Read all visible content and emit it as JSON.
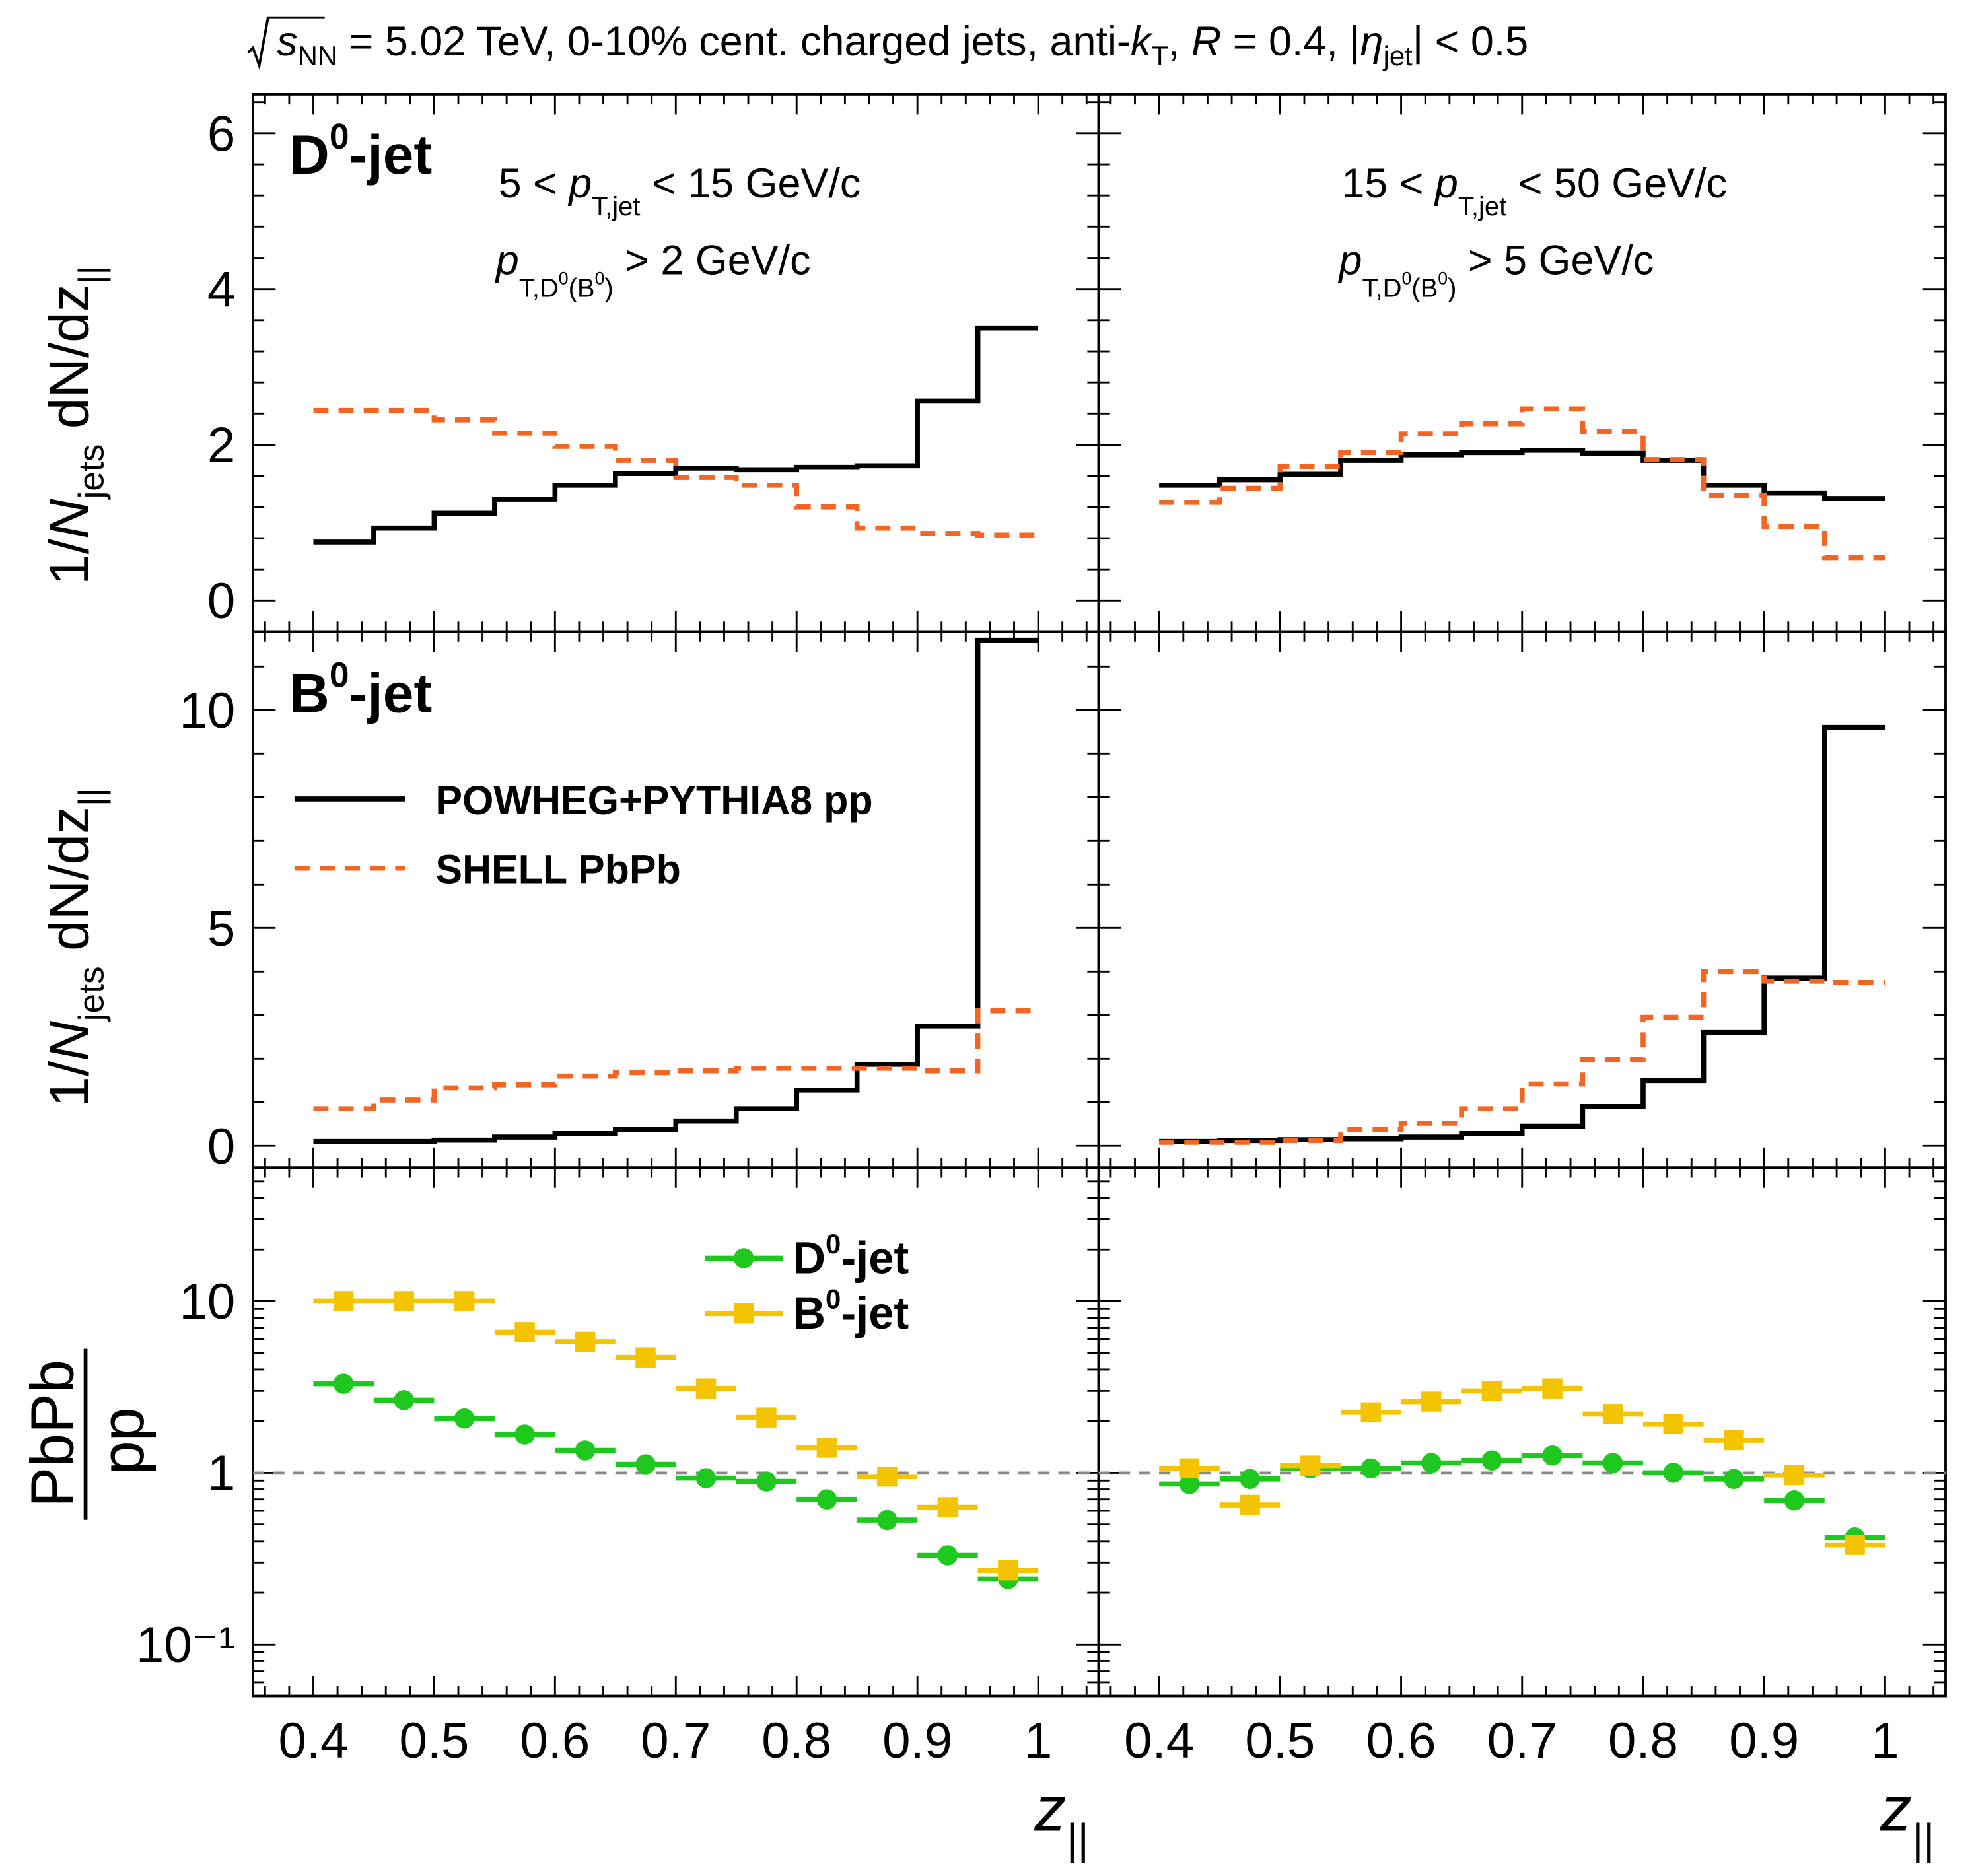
{
  "header": {
    "sqrt_s": "s",
    "sqrt_sub": "NN",
    "part1": " = 5.02 TeV, 0-10% cent. charged jets, anti-",
    "k": "k",
    "k_sub": "T",
    "part2": ", ",
    "R": "R",
    "part3": " = 0.4, |",
    "eta": "η",
    "eta_sub": "jet",
    "part4": "| < 0.5"
  },
  "labels": {
    "d0_jet": {
      "main": "D",
      "sup": "0",
      "rest": "-jet"
    },
    "b0_jet": {
      "main": "B",
      "sup": "0",
      "rest": "-jet"
    },
    "left_kin": {
      "pt_range_lo": "5 < ",
      "pt_p": "p",
      "pt_sub": "T,jet",
      "pt_range_hi": " < 15 GeV/c",
      "cut_p": "p",
      "cut_sub": "T,D",
      "cut_sup1": "0",
      "cut_mid": "(B",
      "cut_sup2": "0",
      "cut_close": ")",
      "cut_val": " > 2 GeV/c"
    },
    "right_kin": {
      "pt_range_lo": "15 < ",
      "pt_p": "p",
      "pt_sub": "T,jet",
      "pt_range_hi": " < 50 GeV/c",
      "cut_p": "p",
      "cut_sub": "T,D",
      "cut_sup1": "0",
      "cut_mid": "(B",
      "cut_sup2": "0",
      "cut_close": ")",
      "cut_val": " > 5 GeV/c"
    },
    "ylabel_dist": {
      "pre": "1/",
      "N": "N",
      "N_sub": "jets",
      "post": " dN/dz",
      "post_sub": "||"
    },
    "ylabel_ratio": {
      "num": "PbPb",
      "den": "pp"
    },
    "xlabel": {
      "z": "z",
      "sub": "||"
    }
  },
  "legend_top": {
    "pp_label": "POWHEG+PYTHIA8 pp",
    "pbpb_label": "SHELL PbPb"
  },
  "legend_ratio": {
    "d0_label": {
      "main": "D",
      "sup": "0",
      "rest": "-jet"
    },
    "b0_label": {
      "main": "B",
      "sup": "0",
      "rest": "-jet"
    }
  },
  "colors": {
    "pp": "#000000",
    "pbpb": "#f26522",
    "d0": "#1ec81e",
    "b0": "#f5c400",
    "refline": "#888888"
  },
  "chart_data": [
    {
      "type": "line",
      "title": "D0-jet, 5 < pT,jet < 15 GeV/c",
      "xlabel": "z||",
      "ylabel": "1/Njets dN/dz||",
      "xlim": [
        0.35,
        1.05
      ],
      "ylim": [
        -0.4,
        6.5
      ],
      "yticks": [
        0,
        2,
        4,
        6
      ],
      "bin_edges": [
        0.4,
        0.45,
        0.5,
        0.55,
        0.6,
        0.65,
        0.7,
        0.75,
        0.8,
        0.85,
        0.9,
        0.95,
        1.0
      ],
      "series": [
        {
          "name": "POWHEG+PYTHIA8 pp",
          "values": [
            0.75,
            0.93,
            1.12,
            1.3,
            1.48,
            1.63,
            1.7,
            1.68,
            1.71,
            1.73,
            2.56,
            3.5
          ]
        },
        {
          "name": "SHELL PbPb",
          "values": [
            2.44,
            2.44,
            2.32,
            2.15,
            1.98,
            1.8,
            1.58,
            1.48,
            1.2,
            0.93,
            0.86,
            0.84
          ]
        }
      ]
    },
    {
      "type": "line",
      "title": "D0-jet, 15 < pT,jet < 50 GeV/c",
      "xlabel": "z||",
      "ylabel": "1/Njets dN/dz||",
      "xlim": [
        0.35,
        1.05
      ],
      "ylim": [
        -0.4,
        6.5
      ],
      "yticks": [
        0,
        2,
        4,
        6
      ],
      "bin_edges": [
        0.4,
        0.45,
        0.5,
        0.55,
        0.6,
        0.65,
        0.7,
        0.75,
        0.8,
        0.85,
        0.9,
        0.95,
        1.0
      ],
      "series": [
        {
          "name": "POWHEG+PYTHIA8 pp",
          "values": [
            1.48,
            1.55,
            1.62,
            1.8,
            1.87,
            1.9,
            1.93,
            1.89,
            1.8,
            1.48,
            1.38,
            1.31
          ]
        },
        {
          "name": "SHELL PbPb",
          "values": [
            1.26,
            1.44,
            1.72,
            1.9,
            2.14,
            2.27,
            2.46,
            2.17,
            1.81,
            1.35,
            0.95,
            0.55
          ]
        }
      ]
    },
    {
      "type": "line",
      "title": "B0-jet, 5 < pT,jet < 15 GeV/c",
      "xlabel": "z||",
      "ylabel": "1/Njets dN/dz||",
      "xlim": [
        0.35,
        1.05
      ],
      "ylim": [
        -0.5,
        11.8
      ],
      "yticks": [
        0,
        5,
        10
      ],
      "bin_edges": [
        0.4,
        0.45,
        0.5,
        0.55,
        0.6,
        0.65,
        0.7,
        0.75,
        0.8,
        0.85,
        0.9,
        0.95,
        1.0
      ],
      "series": [
        {
          "name": "POWHEG+PYTHIA8 pp",
          "values": [
            0.1,
            0.1,
            0.13,
            0.2,
            0.28,
            0.38,
            0.57,
            0.85,
            1.28,
            1.87,
            2.75,
            11.6
          ]
        },
        {
          "name": "SHELL PbPb",
          "values": [
            0.85,
            1.05,
            1.33,
            1.4,
            1.6,
            1.68,
            1.72,
            1.78,
            1.78,
            1.78,
            1.72,
            3.1
          ]
        }
      ]
    },
    {
      "type": "line",
      "title": "B0-jet, 15 < pT,jet < 50 GeV/c",
      "xlabel": "z||",
      "ylabel": "1/Njets dN/dz||",
      "xlim": [
        0.35,
        1.05
      ],
      "ylim": [
        -0.5,
        11.8
      ],
      "yticks": [
        0,
        5,
        10
      ],
      "bin_edges": [
        0.4,
        0.45,
        0.5,
        0.55,
        0.6,
        0.65,
        0.7,
        0.75,
        0.8,
        0.85,
        0.9,
        0.95,
        1.0
      ],
      "series": [
        {
          "name": "POWHEG+PYTHIA8 pp",
          "values": [
            0.1,
            0.12,
            0.14,
            0.16,
            0.2,
            0.28,
            0.45,
            0.9,
            1.5,
            2.6,
            3.85,
            9.6
          ]
        },
        {
          "name": "SHELL PbPb",
          "values": [
            0.08,
            0.08,
            0.12,
            0.38,
            0.52,
            0.85,
            1.42,
            1.98,
            2.95,
            4.0,
            3.78,
            3.75
          ]
        }
      ]
    },
    {
      "type": "scatter",
      "title": "PbPb/pp, 5 < pT,jet < 15 GeV/c",
      "xlabel": "z||",
      "ylabel": "PbPb/pp",
      "yscale": "log",
      "xlim": [
        0.35,
        1.05
      ],
      "ylim": [
        0.05,
        60
      ],
      "yticks": [
        0.1,
        1,
        10
      ],
      "ytick_labels": [
        "10⁻¹",
        "1",
        "10"
      ],
      "x": [
        0.425,
        0.475,
        0.525,
        0.575,
        0.625,
        0.675,
        0.725,
        0.775,
        0.825,
        0.875,
        0.925,
        0.975
      ],
      "xerr": 0.025,
      "series": [
        {
          "name": "D0-jet",
          "values": [
            3.3,
            2.65,
            2.07,
            1.67,
            1.35,
            1.12,
            0.93,
            0.89,
            0.7,
            0.53,
            0.33,
            0.24
          ]
        },
        {
          "name": "B0-jet",
          "values": [
            10.0,
            10.0,
            10.0,
            6.6,
            5.8,
            4.7,
            3.1,
            2.1,
            1.4,
            0.95,
            0.63,
            0.27
          ]
        }
      ]
    },
    {
      "type": "scatter",
      "title": "PbPb/pp, 15 < pT,jet < 50 GeV/c",
      "xlabel": "z||",
      "ylabel": "PbPb/pp",
      "yscale": "log",
      "xlim": [
        0.35,
        1.05
      ],
      "ylim": [
        0.05,
        60
      ],
      "yticks": [
        0.1,
        1,
        10
      ],
      "x": [
        0.425,
        0.475,
        0.525,
        0.575,
        0.625,
        0.675,
        0.725,
        0.775,
        0.825,
        0.875,
        0.925,
        0.975
      ],
      "xerr": 0.025,
      "series": [
        {
          "name": "D0-jet",
          "values": [
            0.86,
            0.92,
            1.06,
            1.06,
            1.14,
            1.18,
            1.26,
            1.14,
            1.0,
            0.92,
            0.69,
            0.42
          ]
        },
        {
          "name": "B0-jet",
          "values": [
            1.06,
            0.65,
            1.1,
            2.25,
            2.6,
            3.0,
            3.1,
            2.2,
            1.92,
            1.55,
            0.97,
            0.38
          ]
        }
      ]
    }
  ],
  "x_tick_labels": [
    "0.4",
    "0.5",
    "0.6",
    "0.7",
    "0.8",
    "0.9",
    "1"
  ]
}
